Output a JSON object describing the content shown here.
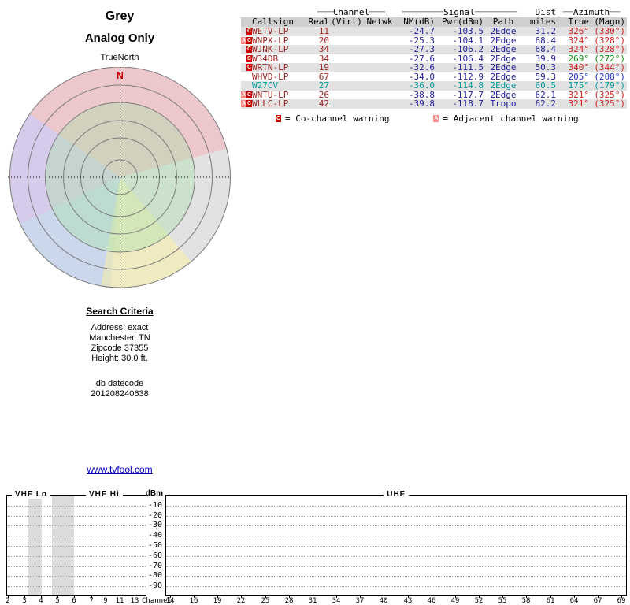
{
  "colors": {
    "maroon": "#992222",
    "navy": "#222299",
    "teal": "#009999",
    "red": "#cc2222",
    "green": "#118811",
    "blue": "#2233cc",
    "link": "#0000bb",
    "flag_c_bg": "#cc0000",
    "flag_a_bg": "#ff8888",
    "north_marker": "#cc0000"
  },
  "left_panel": {
    "title_line1": "Grey",
    "title_line2": "Analog Only",
    "true_north_label": "TrueNorth",
    "north_marker": "N",
    "search_criteria": {
      "heading": "Search Criteria",
      "lines": [
        "Address: exact",
        "Manchester, TN",
        "Zipcode 37355",
        "Height: 30.0 ft."
      ]
    },
    "datecode_label": "db datecode",
    "datecode_value": "201208240638",
    "website_link": "www.tvfool.com"
  },
  "table": {
    "group_headers": {
      "channel": {
        "pre": "═══",
        "label": "Channel",
        "post": "═══"
      },
      "signal": {
        "pre": "════════",
        "label": "Signal",
        "post": "════════"
      },
      "dist": "Dist",
      "azimuth": {
        "pre": "══",
        "label": "Azimuth",
        "post": "══"
      }
    },
    "columns": [
      "Callsign",
      "Real",
      "(Virt)",
      "Netwk",
      "NM(dB)",
      "Pwr(dBm)",
      "Path",
      "miles",
      "True",
      "(Magn)"
    ],
    "rows": [
      {
        "flags": [
          "C"
        ],
        "callsign": "WETV-LP",
        "real": "11",
        "virt": "",
        "netwk": "",
        "nm": "-24.7",
        "pwr": "-103.5",
        "path": "2Edge",
        "miles": "31.2",
        "az_true": "326°",
        "az_magn": "(330°)",
        "fg": "maroon",
        "num": "navy",
        "az": "red"
      },
      {
        "flags": [
          "A",
          "C"
        ],
        "callsign": "WNPX-LP",
        "real": "20",
        "virt": "",
        "netwk": "",
        "nm": "-25.3",
        "pwr": "-104.1",
        "path": "2Edge",
        "miles": "68.4",
        "az_true": "324°",
        "az_magn": "(328°)",
        "fg": "maroon",
        "num": "navy",
        "az": "red"
      },
      {
        "flags": [
          "C"
        ],
        "callsign": "WJNK-LP",
        "real": "34",
        "virt": "",
        "netwk": "",
        "nm": "-27.3",
        "pwr": "-106.2",
        "path": "2Edge",
        "miles": "68.4",
        "az_true": "324°",
        "az_magn": "(328°)",
        "fg": "maroon",
        "num": "navy",
        "az": "red"
      },
      {
        "flags": [
          "C"
        ],
        "callsign": "W34DB",
        "real": "34",
        "virt": "",
        "netwk": "",
        "nm": "-27.6",
        "pwr": "-106.4",
        "path": "2Edge",
        "miles": "39.9",
        "az_true": "269°",
        "az_magn": "(272°)",
        "fg": "maroon",
        "num": "navy",
        "az": "green"
      },
      {
        "flags": [
          "C"
        ],
        "callsign": "WRTN-LP",
        "real": "19",
        "virt": "",
        "netwk": "",
        "nm": "-32.6",
        "pwr": "-111.5",
        "path": "2Edge",
        "miles": "50.3",
        "az_true": "340°",
        "az_magn": "(344°)",
        "fg": "maroon",
        "num": "navy",
        "az": "red"
      },
      {
        "flags": [],
        "callsign": "WHVD-LP",
        "real": "67",
        "virt": "",
        "netwk": "",
        "nm": "-34.0",
        "pwr": "-112.9",
        "path": "2Edge",
        "miles": "59.3",
        "az_true": "205°",
        "az_magn": "(208°)",
        "fg": "maroon",
        "num": "navy",
        "az": "blue"
      },
      {
        "flags": [],
        "callsign": "W27CV",
        "real": "27",
        "virt": "",
        "netwk": "",
        "nm": "-36.0",
        "pwr": "-114.8",
        "path": "2Edge",
        "miles": "60.5",
        "az_true": "175°",
        "az_magn": "(179°)",
        "fg": "teal",
        "num": "teal",
        "az": "teal"
      },
      {
        "flags": [
          "A",
          "C"
        ],
        "callsign": "WNTU-LP",
        "real": "26",
        "virt": "",
        "netwk": "",
        "nm": "-38.8",
        "pwr": "-117.7",
        "path": "2Edge",
        "miles": "62.1",
        "az_true": "321°",
        "az_magn": "(325°)",
        "fg": "maroon",
        "num": "navy",
        "az": "red"
      },
      {
        "flags": [
          "A",
          "C"
        ],
        "callsign": "WLLC-LP",
        "real": "42",
        "virt": "",
        "netwk": "",
        "nm": "-39.8",
        "pwr": "-118.7",
        "path": "Tropo",
        "miles": "62.2",
        "az_true": "321°",
        "az_magn": "(325°)",
        "fg": "maroon",
        "num": "navy",
        "az": "red"
      }
    ]
  },
  "legend": {
    "co_flag": "C",
    "co_text": "= Co-channel warning",
    "adj_flag": "A",
    "adj_text": "= Adjacent channel warning"
  },
  "spectrum": {
    "band_labels": {
      "vhf_lo": "VHF Lo",
      "vhf_hi": "VHF Hi",
      "uhf": "UHF"
    },
    "dbm_label": "dBm",
    "dbm_ticks": [
      "-10",
      "-20",
      "-30",
      "-40",
      "-50",
      "-60",
      "-70",
      "-80",
      "-90"
    ],
    "channel_axis_label": "Channel",
    "channels_vhf_lo": [
      "2",
      "3",
      "4",
      "5",
      "6"
    ],
    "channels_vhf_hi": [
      "7",
      "9",
      "11",
      "13"
    ],
    "channels_uhf": [
      "14",
      "16",
      "19",
      "22",
      "25",
      "28",
      "31",
      "34",
      "37",
      "40",
      "43",
      "46",
      "49",
      "52",
      "55",
      "58",
      "61",
      "64",
      "67",
      "69"
    ]
  },
  "chart_data": [
    {
      "type": "table",
      "title": "Grey — Analog Only",
      "columns": [
        "Callsign",
        "Real Channel",
        "NM(dB)",
        "Pwr(dBm)",
        "Path",
        "Dist miles",
        "Azimuth True",
        "Azimuth Magn"
      ],
      "rows": [
        [
          "WETV-LP",
          11,
          -24.7,
          -103.5,
          "2Edge",
          31.2,
          326,
          330
        ],
        [
          "WNPX-LP",
          20,
          -25.3,
          -104.1,
          "2Edge",
          68.4,
          324,
          328
        ],
        [
          "WJNK-LP",
          34,
          -27.3,
          -106.2,
          "2Edge",
          68.4,
          324,
          328
        ],
        [
          "W34DB",
          34,
          -27.6,
          -106.4,
          "2Edge",
          39.9,
          269,
          272
        ],
        [
          "WRTN-LP",
          19,
          -32.6,
          -111.5,
          "2Edge",
          50.3,
          340,
          344
        ],
        [
          "WHVD-LP",
          67,
          -34.0,
          -112.9,
          "2Edge",
          59.3,
          205,
          208
        ],
        [
          "W27CV",
          27,
          -36.0,
          -114.8,
          "2Edge",
          60.5,
          175,
          179
        ],
        [
          "WNTU-LP",
          26,
          -38.8,
          -117.7,
          "2Edge",
          62.1,
          321,
          325
        ],
        [
          "WLLC-LP",
          42,
          -39.8,
          -118.7,
          "Tropo",
          62.2,
          321,
          325
        ]
      ]
    },
    {
      "type": "radar",
      "title": "Grey Analog Only",
      "rings": 5,
      "north_label": "N",
      "station_azimuths_true": [
        326,
        324,
        324,
        269,
        340,
        205,
        175,
        321,
        321
      ]
    },
    {
      "type": "spectrum",
      "ylabel": "dBm",
      "ylim": [
        -90,
        -10
      ],
      "bands": [
        "VHF Lo",
        "VHF Hi",
        "UHF"
      ],
      "xlabel": "Channel",
      "x_tick_labels": [
        "2",
        "3",
        "4",
        "5",
        "6",
        "7",
        "9",
        "11",
        "13",
        "14",
        "16",
        "19",
        "22",
        "25",
        "28",
        "31",
        "34",
        "37",
        "40",
        "43",
        "46",
        "49",
        "52",
        "55",
        "58",
        "61",
        "64",
        "67",
        "69"
      ],
      "signals_plotted": []
    }
  ]
}
